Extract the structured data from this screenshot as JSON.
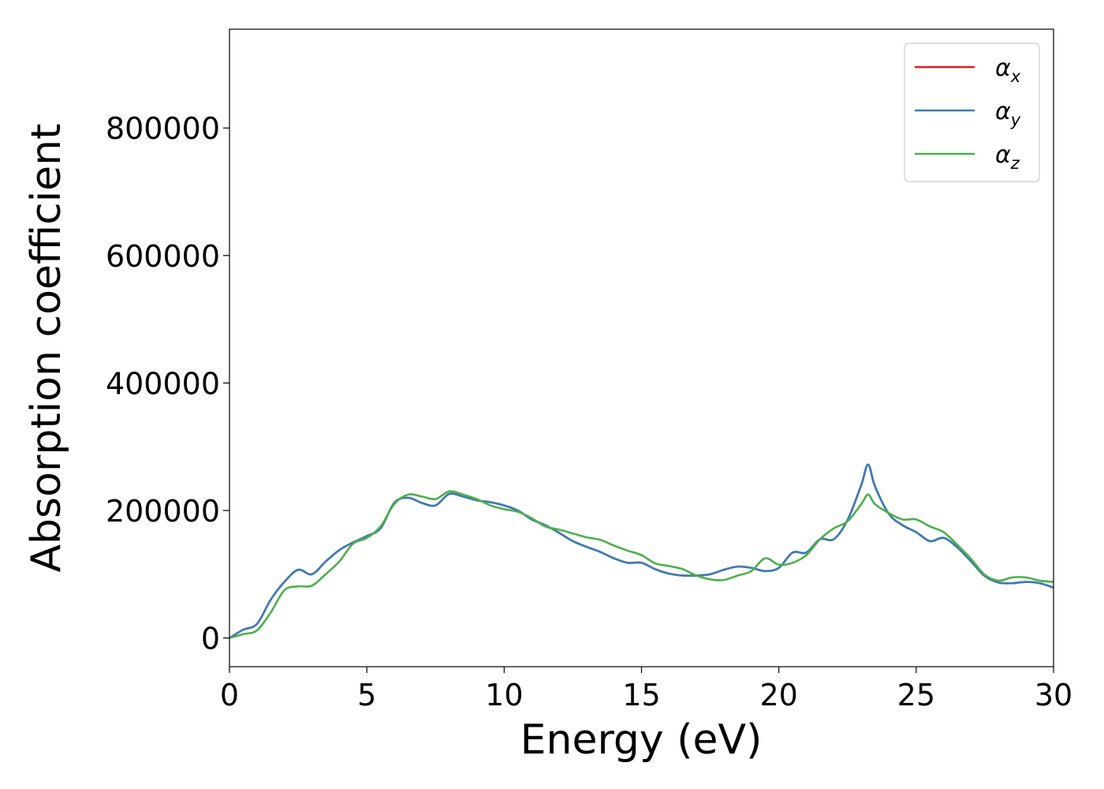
{
  "chart_data": {
    "type": "line",
    "title": "",
    "xlabel": "Energy (eV)",
    "ylabel": "Absorption coefficient",
    "xlim": [
      0,
      30
    ],
    "ylim": [
      -45000,
      955000
    ],
    "xticks": [
      0,
      5,
      10,
      15,
      20,
      25,
      30
    ],
    "yticks": [
      0,
      200000,
      400000,
      600000,
      800000
    ],
    "xtick_labels": [
      "0",
      "5",
      "10",
      "15",
      "20",
      "25",
      "30"
    ],
    "ytick_labels": [
      "0",
      "200000",
      "400000",
      "600000",
      "800000"
    ],
    "grid": false,
    "legend_position": "top-right",
    "x": [
      0,
      0.5,
      1,
      1.5,
      2,
      2.5,
      3,
      3.5,
      4,
      4.5,
      5,
      5.5,
      6,
      6.5,
      7,
      7.5,
      8,
      8.5,
      9,
      9.5,
      10,
      10.5,
      11,
      11.5,
      12,
      12.5,
      13,
      13.5,
      14,
      14.5,
      15,
      15.5,
      16,
      16.5,
      17,
      17.5,
      18,
      18.5,
      19,
      19.5,
      20,
      20.5,
      21,
      21.5,
      22,
      22.5,
      23,
      23.25,
      23.5,
      24,
      24.5,
      25,
      25.5,
      26,
      26.5,
      27,
      27.5,
      28,
      28.5,
      29,
      29.5,
      30
    ],
    "series": [
      {
        "name": "α_x",
        "color": "#e41a1c",
        "values": [
          0,
          13000,
          22000,
          60000,
          88000,
          107000,
          100000,
          120000,
          138000,
          150000,
          160000,
          172000,
          212000,
          220000,
          212000,
          208000,
          226000,
          222000,
          216000,
          213000,
          208000,
          200000,
          186000,
          177000,
          165000,
          152000,
          143000,
          135000,
          125000,
          118000,
          118000,
          108000,
          101000,
          98000,
          98000,
          100000,
          107000,
          112000,
          110000,
          105000,
          110000,
          134000,
          134000,
          155000,
          155000,
          185000,
          240000,
          272000,
          238000,
          195000,
          177000,
          166000,
          152000,
          157000,
          142000,
          120000,
          97000,
          87000,
          86000,
          88000,
          86000,
          79000
        ]
      },
      {
        "name": "α_y",
        "color": "#377eb8",
        "values": [
          0,
          13000,
          22000,
          60000,
          88000,
          107000,
          100000,
          120000,
          138000,
          150000,
          160000,
          172000,
          212000,
          220000,
          212000,
          208000,
          226000,
          222000,
          216000,
          213000,
          208000,
          200000,
          186000,
          177000,
          165000,
          152000,
          143000,
          135000,
          125000,
          118000,
          118000,
          108000,
          101000,
          98000,
          98000,
          100000,
          107000,
          112000,
          110000,
          105000,
          110000,
          134000,
          134000,
          155000,
          155000,
          185000,
          240000,
          272000,
          238000,
          195000,
          177000,
          166000,
          152000,
          157000,
          142000,
          120000,
          97000,
          87000,
          86000,
          88000,
          86000,
          79000
        ]
      },
      {
        "name": "α_z",
        "color": "#4daf4a",
        "values": [
          0,
          6000,
          12000,
          40000,
          75000,
          81000,
          82000,
          100000,
          120000,
          148000,
          157000,
          175000,
          210000,
          225000,
          222000,
          218000,
          230000,
          225000,
          218000,
          208000,
          202000,
          198000,
          188000,
          175000,
          170000,
          164000,
          158000,
          154000,
          145000,
          137000,
          130000,
          117000,
          113000,
          108000,
          98000,
          92000,
          91000,
          98000,
          105000,
          125000,
          115000,
          118000,
          130000,
          155000,
          172000,
          183000,
          210000,
          225000,
          210000,
          196000,
          186000,
          186000,
          175000,
          166000,
          146000,
          124000,
          99000,
          90000,
          95000,
          95000,
          90000,
          88000
        ]
      }
    ]
  }
}
